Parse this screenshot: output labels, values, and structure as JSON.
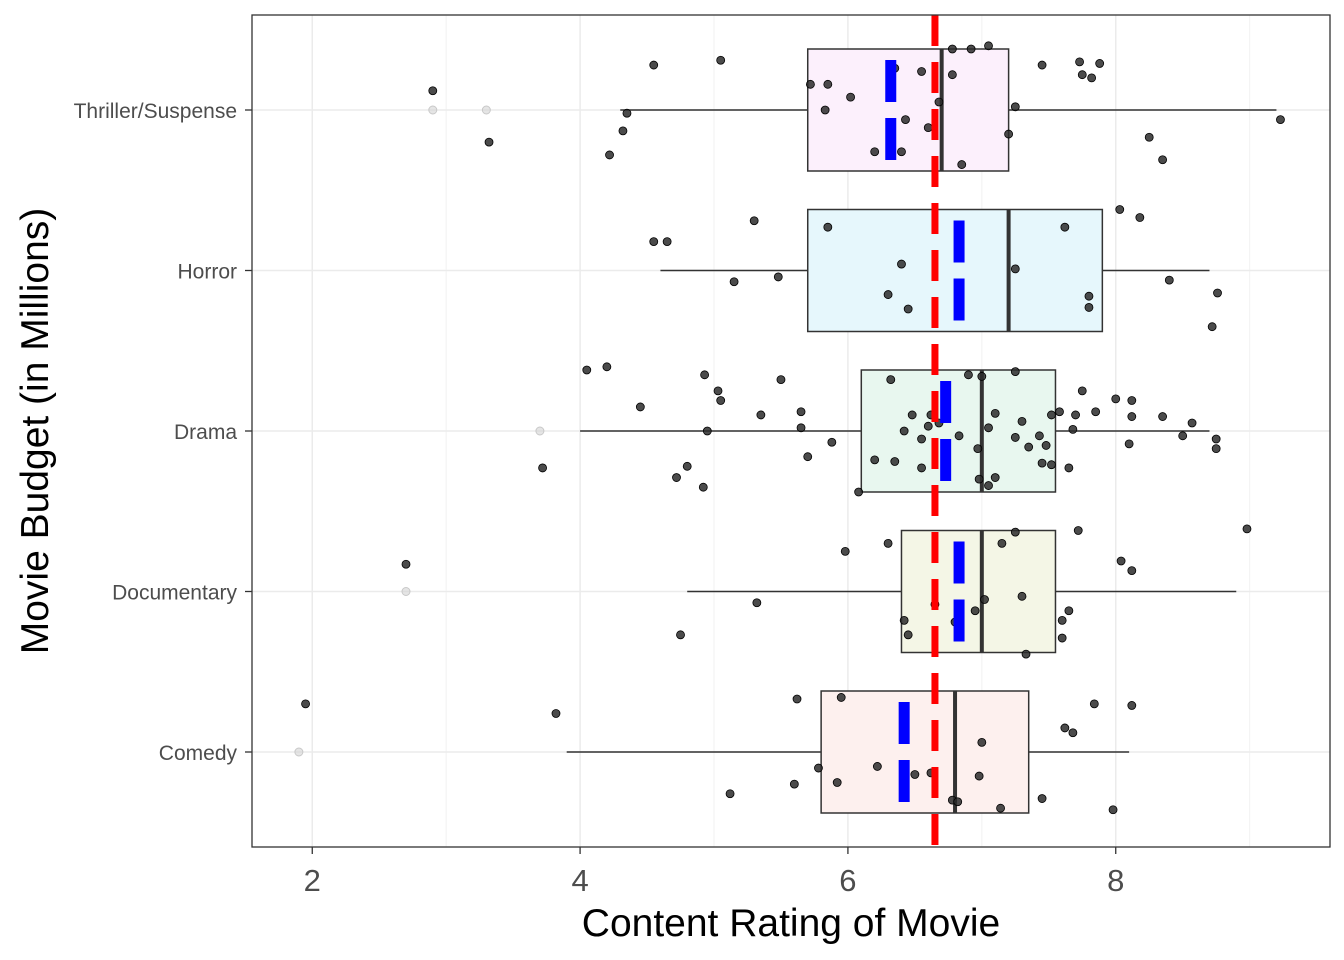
{
  "chart_data": {
    "type": "boxplot",
    "title": "",
    "xlabel": "Content Rating of Movie",
    "ylabel": "Movie Budget (in Millions)",
    "xlim": [
      1.55,
      9.6
    ],
    "x_ticks": [
      2,
      4,
      6,
      8
    ],
    "grid": true,
    "legend": "none",
    "overall_mean": 6.65,
    "overall_mean_color": "#ff0000",
    "group_mean_color": "#0000ff",
    "categories": [
      "Thriller/Suspense",
      "Horror",
      "Drama",
      "Documentary",
      "Comedy"
    ],
    "groups": [
      {
        "name": "Thriller/Suspense",
        "fill": "#fcf0fc",
        "whisker_low": 4.3,
        "q1": 5.7,
        "median": 6.7,
        "q3": 7.2,
        "whisker_high": 9.2,
        "mean": 6.32,
        "outliers": [
          2.9,
          3.3
        ],
        "points": [
          {
            "x": 4.55,
            "y": 0.28
          },
          {
            "x": 5.05,
            "y": 0.31
          },
          {
            "x": 6.92,
            "y": 0.38
          },
          {
            "x": 7.05,
            "y": 0.4
          },
          {
            "x": 6.78,
            "y": 0.38
          },
          {
            "x": 7.45,
            "y": 0.28
          },
          {
            "x": 7.73,
            "y": 0.3
          },
          {
            "x": 7.88,
            "y": 0.29
          },
          {
            "x": 7.82,
            "y": 0.2
          },
          {
            "x": 7.75,
            "y": 0.22
          },
          {
            "x": 6.35,
            "y": 0.26
          },
          {
            "x": 6.78,
            "y": 0.22
          },
          {
            "x": 6.55,
            "y": 0.24
          },
          {
            "x": 5.85,
            "y": 0.16
          },
          {
            "x": 5.72,
            "y": 0.16
          },
          {
            "x": 6.02,
            "y": 0.08
          },
          {
            "x": 6.68,
            "y": 0.05
          },
          {
            "x": 7.25,
            "y": 0.02
          },
          {
            "x": 5.83,
            "y": 0.0
          },
          {
            "x": 6.43,
            "y": -0.06
          },
          {
            "x": 6.6,
            "y": -0.11
          },
          {
            "x": 7.2,
            "y": -0.15
          },
          {
            "x": 2.9,
            "y": 0.12
          },
          {
            "x": 4.35,
            "y": -0.02
          },
          {
            "x": 4.32,
            "y": -0.13
          },
          {
            "x": 3.32,
            "y": -0.2
          },
          {
            "x": 4.22,
            "y": -0.28
          },
          {
            "x": 6.2,
            "y": -0.26
          },
          {
            "x": 6.4,
            "y": -0.26
          },
          {
            "x": 6.85,
            "y": -0.34
          },
          {
            "x": 8.25,
            "y": -0.17
          },
          {
            "x": 8.35,
            "y": -0.31
          },
          {
            "x": 9.23,
            "y": -0.06
          }
        ]
      },
      {
        "name": "Horror",
        "fill": "#e6f7fc",
        "whisker_low": 4.6,
        "q1": 5.7,
        "median": 7.2,
        "q3": 7.9,
        "whisker_high": 8.7,
        "mean": 6.83,
        "outliers": [],
        "points": [
          {
            "x": 8.03,
            "y": 0.38
          },
          {
            "x": 8.18,
            "y": 0.33
          },
          {
            "x": 5.3,
            "y": 0.31
          },
          {
            "x": 5.85,
            "y": 0.27
          },
          {
            "x": 7.62,
            "y": 0.27
          },
          {
            "x": 4.55,
            "y": 0.18
          },
          {
            "x": 4.65,
            "y": 0.18
          },
          {
            "x": 6.4,
            "y": 0.04
          },
          {
            "x": 7.25,
            "y": 0.01
          },
          {
            "x": 5.48,
            "y": -0.04
          },
          {
            "x": 5.15,
            "y": -0.07
          },
          {
            "x": 8.4,
            "y": -0.06
          },
          {
            "x": 6.3,
            "y": -0.15
          },
          {
            "x": 7.8,
            "y": -0.16
          },
          {
            "x": 8.76,
            "y": -0.14
          },
          {
            "x": 6.45,
            "y": -0.24
          },
          {
            "x": 7.8,
            "y": -0.23
          },
          {
            "x": 8.72,
            "y": -0.35
          }
        ]
      },
      {
        "name": "Drama",
        "fill": "#e8f7ef",
        "whisker_low": 4.0,
        "q1": 6.1,
        "median": 7.0,
        "q3": 7.55,
        "whisker_high": 8.7,
        "mean": 6.73,
        "outliers": [
          3.7
        ],
        "points": [
          {
            "x": 4.05,
            "y": 0.38
          },
          {
            "x": 4.2,
            "y": 0.4
          },
          {
            "x": 4.93,
            "y": 0.35
          },
          {
            "x": 5.5,
            "y": 0.32
          },
          {
            "x": 5.03,
            "y": 0.25
          },
          {
            "x": 5.05,
            "y": 0.19
          },
          {
            "x": 6.32,
            "y": 0.32
          },
          {
            "x": 6.9,
            "y": 0.35
          },
          {
            "x": 7.0,
            "y": 0.34
          },
          {
            "x": 7.25,
            "y": 0.37
          },
          {
            "x": 7.75,
            "y": 0.25
          },
          {
            "x": 8.0,
            "y": 0.2
          },
          {
            "x": 8.12,
            "y": 0.19
          },
          {
            "x": 4.45,
            "y": 0.15
          },
          {
            "x": 5.35,
            "y": 0.1
          },
          {
            "x": 5.65,
            "y": 0.12
          },
          {
            "x": 6.48,
            "y": 0.1
          },
          {
            "x": 6.62,
            "y": 0.1
          },
          {
            "x": 6.68,
            "y": 0.05
          },
          {
            "x": 7.1,
            "y": 0.11
          },
          {
            "x": 7.3,
            "y": 0.06
          },
          {
            "x": 7.52,
            "y": 0.1
          },
          {
            "x": 7.58,
            "y": 0.12
          },
          {
            "x": 7.7,
            "y": 0.1
          },
          {
            "x": 7.85,
            "y": 0.12
          },
          {
            "x": 8.12,
            "y": 0.09
          },
          {
            "x": 8.35,
            "y": 0.09
          },
          {
            "x": 8.57,
            "y": 0.05
          },
          {
            "x": 5.65,
            "y": 0.02
          },
          {
            "x": 6.42,
            "y": 0.0
          },
          {
            "x": 6.6,
            "y": 0.03
          },
          {
            "x": 6.83,
            "y": -0.03
          },
          {
            "x": 7.05,
            "y": 0.02
          },
          {
            "x": 7.25,
            "y": -0.04
          },
          {
            "x": 7.43,
            "y": -0.03
          },
          {
            "x": 7.68,
            "y": 0.01
          },
          {
            "x": 8.5,
            "y": -0.03
          },
          {
            "x": 8.75,
            "y": -0.05
          },
          {
            "x": 4.95,
            "y": 0.0
          },
          {
            "x": 5.88,
            "y": -0.07
          },
          {
            "x": 6.55,
            "y": -0.05
          },
          {
            "x": 6.97,
            "y": -0.11
          },
          {
            "x": 7.35,
            "y": -0.1
          },
          {
            "x": 7.48,
            "y": -0.09
          },
          {
            "x": 8.1,
            "y": -0.08
          },
          {
            "x": 8.75,
            "y": -0.11
          },
          {
            "x": 5.7,
            "y": -0.16
          },
          {
            "x": 6.2,
            "y": -0.18
          },
          {
            "x": 6.35,
            "y": -0.19
          },
          {
            "x": 6.55,
            "y": -0.23
          },
          {
            "x": 7.45,
            "y": -0.2
          },
          {
            "x": 7.65,
            "y": -0.23
          },
          {
            "x": 7.52,
            "y": -0.21
          },
          {
            "x": 4.8,
            "y": -0.22
          },
          {
            "x": 4.72,
            "y": -0.29
          },
          {
            "x": 4.92,
            "y": -0.35
          },
          {
            "x": 3.72,
            "y": -0.23
          },
          {
            "x": 6.98,
            "y": -0.3
          },
          {
            "x": 7.05,
            "y": -0.34
          },
          {
            "x": 6.08,
            "y": -0.38
          },
          {
            "x": 7.1,
            "y": -0.29
          }
        ]
      },
      {
        "name": "Documentary",
        "fill": "#f4f6e6",
        "whisker_low": 4.8,
        "q1": 6.4,
        "median": 7.0,
        "q3": 7.55,
        "whisker_high": 8.9,
        "mean": 6.83,
        "outliers": [
          2.7
        ],
        "points": [
          {
            "x": 7.25,
            "y": 0.37
          },
          {
            "x": 7.72,
            "y": 0.38
          },
          {
            "x": 8.98,
            "y": 0.39
          },
          {
            "x": 6.3,
            "y": 0.3
          },
          {
            "x": 7.15,
            "y": 0.3
          },
          {
            "x": 5.98,
            "y": 0.25
          },
          {
            "x": 8.04,
            "y": 0.19
          },
          {
            "x": 8.12,
            "y": 0.13
          },
          {
            "x": 2.7,
            "y": 0.17
          },
          {
            "x": 5.32,
            "y": -0.07
          },
          {
            "x": 6.65,
            "y": -0.08
          },
          {
            "x": 7.02,
            "y": -0.05
          },
          {
            "x": 7.3,
            "y": -0.03
          },
          {
            "x": 6.95,
            "y": -0.12
          },
          {
            "x": 7.65,
            "y": -0.12
          },
          {
            "x": 6.42,
            "y": -0.18
          },
          {
            "x": 6.8,
            "y": -0.19
          },
          {
            "x": 7.6,
            "y": -0.18
          },
          {
            "x": 6.45,
            "y": -0.27
          },
          {
            "x": 4.75,
            "y": -0.27
          },
          {
            "x": 7.6,
            "y": -0.29
          },
          {
            "x": 7.33,
            "y": -0.39
          }
        ]
      },
      {
        "name": "Comedy",
        "fill": "#fdf0ee",
        "whisker_low": 3.9,
        "q1": 5.8,
        "median": 6.8,
        "q3": 7.35,
        "whisker_high": 8.1,
        "mean": 6.42,
        "outliers": [
          1.9
        ],
        "points": [
          {
            "x": 1.95,
            "y": 0.3
          },
          {
            "x": 3.82,
            "y": 0.24
          },
          {
            "x": 5.62,
            "y": 0.33
          },
          {
            "x": 5.95,
            "y": 0.34
          },
          {
            "x": 7.84,
            "y": 0.3
          },
          {
            "x": 8.12,
            "y": 0.29
          },
          {
            "x": 7.62,
            "y": 0.15
          },
          {
            "x": 7.68,
            "y": 0.12
          },
          {
            "x": 7.0,
            "y": 0.06
          },
          {
            "x": 6.22,
            "y": -0.09
          },
          {
            "x": 5.78,
            "y": -0.1
          },
          {
            "x": 6.5,
            "y": -0.14
          },
          {
            "x": 6.62,
            "y": -0.13
          },
          {
            "x": 6.98,
            "y": -0.15
          },
          {
            "x": 5.92,
            "y": -0.19
          },
          {
            "x": 5.6,
            "y": -0.2
          },
          {
            "x": 5.12,
            "y": -0.26
          },
          {
            "x": 6.78,
            "y": -0.3
          },
          {
            "x": 6.82,
            "y": -0.31
          },
          {
            "x": 7.45,
            "y": -0.29
          },
          {
            "x": 7.14,
            "y": -0.35
          },
          {
            "x": 7.98,
            "y": -0.36
          }
        ]
      }
    ]
  }
}
